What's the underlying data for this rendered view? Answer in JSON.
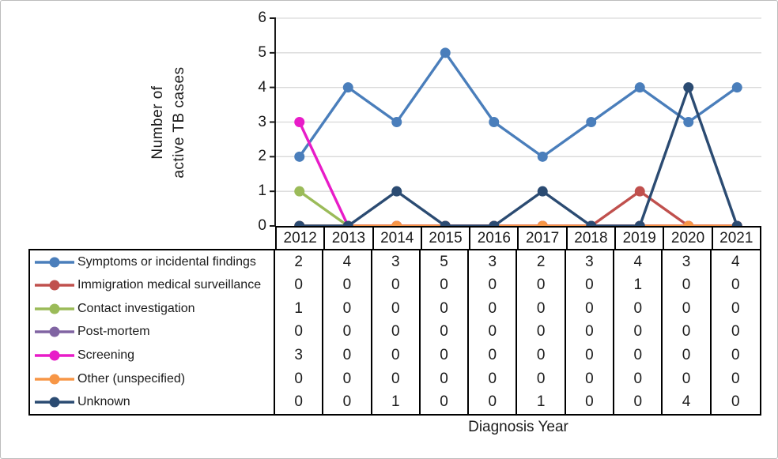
{
  "figure": {
    "xlabel": "Diagnosis Year",
    "ylabel": "Number of active TB cases",
    "ylabel_lines": [
      "Number of",
      "active TB cases"
    ]
  },
  "colors": {
    "gridline": "#d9d9d9",
    "axis": "#1a1a1a",
    "table_border": "#000000",
    "text": "#1b1b1b"
  },
  "chart_data": {
    "type": "line",
    "title": "",
    "xlabel": "Diagnosis Year",
    "ylabel": "Number of active TB cases",
    "x": [
      "2012",
      "2013",
      "2014",
      "2015",
      "2016",
      "2017",
      "2018",
      "2019",
      "2020",
      "2021"
    ],
    "ylim": [
      0,
      6
    ],
    "yticks": [
      0,
      1,
      2,
      3,
      4,
      5,
      6
    ],
    "grid": true,
    "legend_position": "table-left",
    "series": [
      {
        "name": "Symptoms or incidental findings",
        "color": "#4a7ebb",
        "values": [
          2,
          4,
          3,
          5,
          3,
          2,
          3,
          4,
          3,
          4
        ]
      },
      {
        "name": "Immigration medical surveillance",
        "color": "#c0504d",
        "values": [
          0,
          0,
          0,
          0,
          0,
          0,
          0,
          1,
          0,
          0
        ]
      },
      {
        "name": "Contact investigation",
        "color": "#9bbb59",
        "values": [
          1,
          0,
          0,
          0,
          0,
          0,
          0,
          0,
          0,
          0
        ]
      },
      {
        "name": "Post-mortem",
        "color": "#8064a2",
        "values": [
          0,
          0,
          0,
          0,
          0,
          0,
          0,
          0,
          0,
          0
        ]
      },
      {
        "name": "Screening",
        "color": "#e81cc8",
        "values": [
          3,
          0,
          0,
          0,
          0,
          0,
          0,
          0,
          0,
          0
        ]
      },
      {
        "name": "Other (unspecified)",
        "color": "#f79646",
        "values": [
          0,
          0,
          0,
          0,
          0,
          0,
          0,
          0,
          0,
          0
        ]
      },
      {
        "name": "Unknown",
        "color": "#2b4b72",
        "values": [
          0,
          0,
          1,
          0,
          0,
          1,
          0,
          0,
          4,
          0
        ]
      }
    ]
  }
}
